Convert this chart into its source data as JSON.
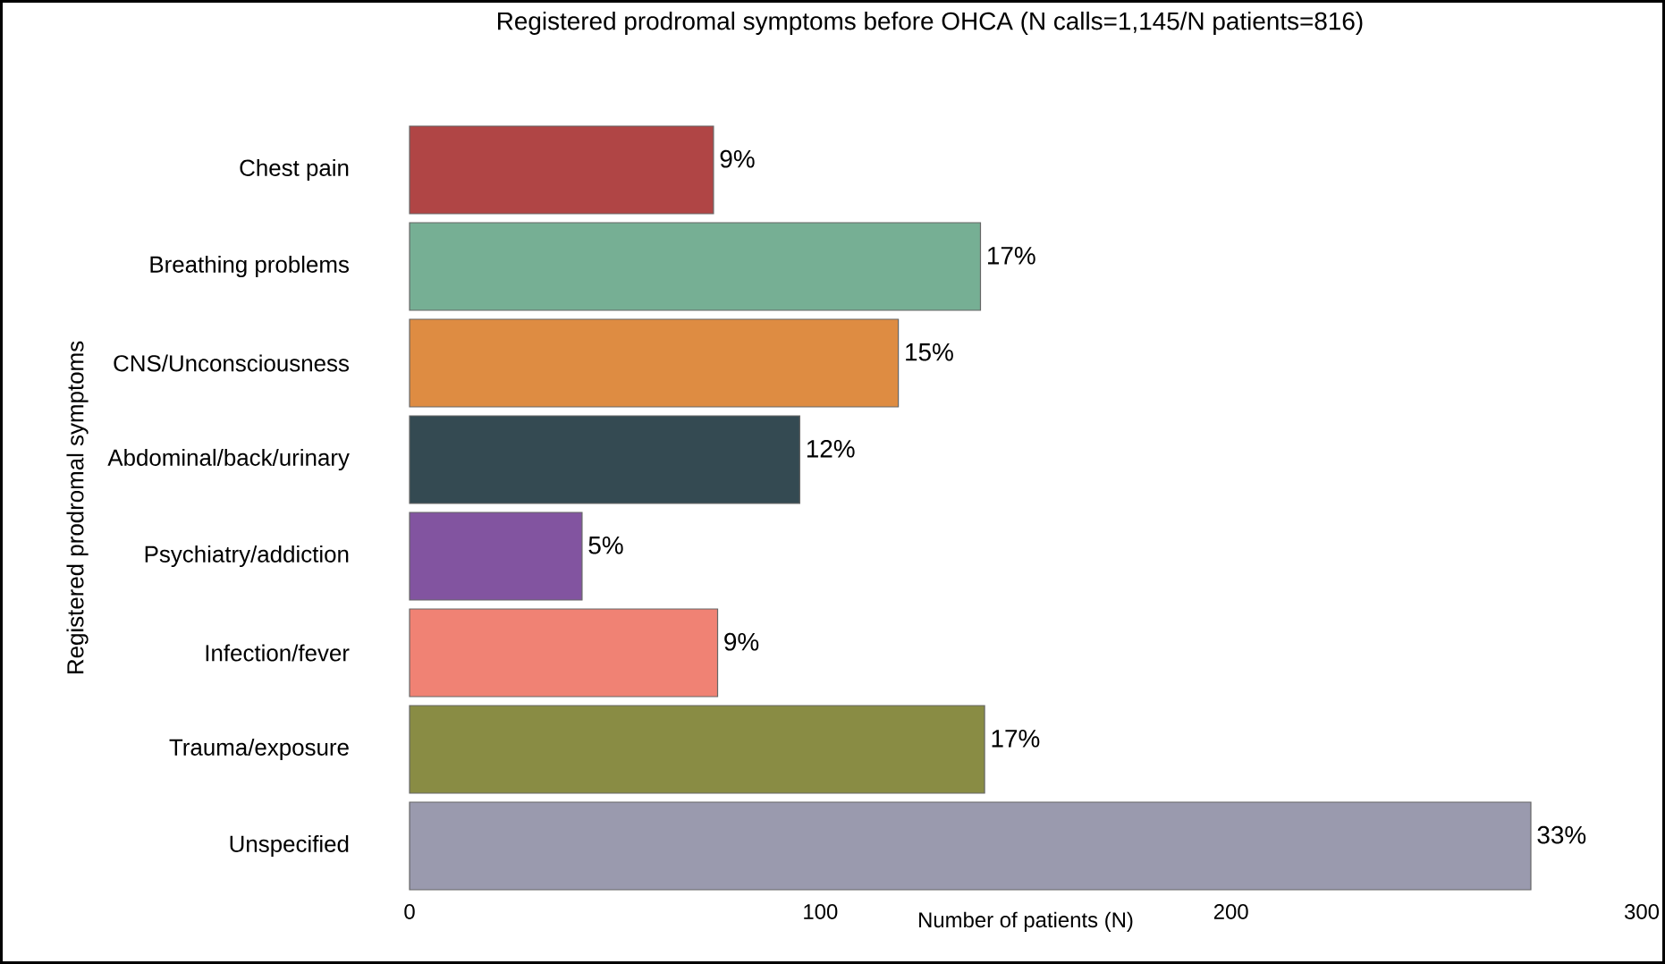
{
  "chart_data": {
    "type": "bar",
    "orientation": "horizontal",
    "title": "Registered prodromal symptoms before OHCA (N calls=1,145/N patients=816)",
    "xlabel": "Number of patients (N)",
    "ylabel": "Registered prodromal symptoms",
    "categories": [
      "Chest pain",
      "Breathing problems",
      "CNS/Unconsciousness",
      "Abdominal/back/urinary",
      "Psychiatry/addiction",
      "Infection/fever",
      "Trauma/exposure",
      "Unspecified"
    ],
    "values": [
      74,
      139,
      119,
      95,
      42,
      75,
      140,
      273
    ],
    "colors": [
      "#b04545",
      "#76af94",
      "#de8c42",
      "#344a52",
      "#8254a0",
      "#f08274",
      "#898c44",
      "#9a9aae"
    ],
    "annotations": [
      {
        "text": "9%",
        "x": 74,
        "y": "Chest pain"
      },
      {
        "text": "17%",
        "x": 139,
        "y": "Breathing problems"
      },
      {
        "text": "15%",
        "x": 119,
        "y": "CNS/Unconsciousness"
      },
      {
        "text": "12%",
        "x": 95,
        "y": "Abdominal/back/urinary"
      },
      {
        "text": "5%",
        "x": 42,
        "y": "Psychiatry/addiction"
      },
      {
        "text": "9%",
        "x": 75,
        "y": "Infection/fever"
      },
      {
        "text": "17%",
        "x": 140,
        "y": "Trauma/exposure"
      },
      {
        "text": "33%",
        "x": 273,
        "y": "Unspecified"
      }
    ],
    "xlim": [
      0,
      300
    ],
    "xticks": [
      0,
      100,
      200,
      300
    ]
  }
}
